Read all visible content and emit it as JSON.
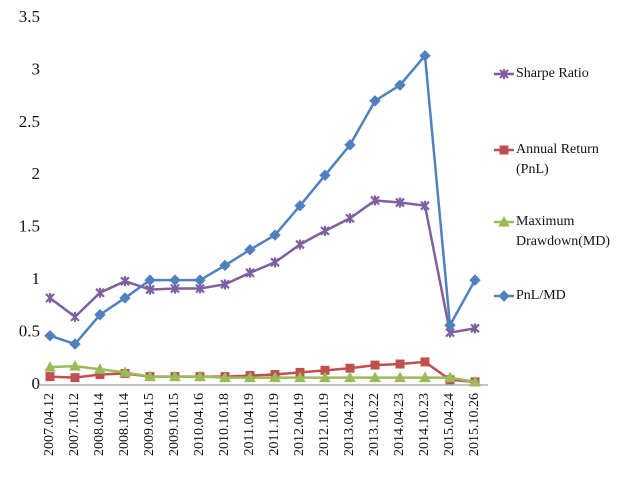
{
  "chart_data": {
    "type": "line",
    "categories": [
      "2007.04.12",
      "2007.10.12",
      "2008.04.14",
      "2008.10.14",
      "2009.04.15",
      "2009.10.15",
      "2010.04.16",
      "2010.10.18",
      "2011.04.19",
      "2011.10.19",
      "2012.04.19",
      "2012.10.19",
      "2013.04.22",
      "2013.10.22",
      "2014.04.23",
      "2014.10.23",
      "2015.04.24",
      "2015.10.26"
    ],
    "series": [
      {
        "name": "Sharpe Ratio",
        "color": "#7f5fa0",
        "marker": "star",
        "values": [
          0.83,
          0.65,
          0.88,
          0.99,
          0.91,
          0.92,
          0.92,
          0.96,
          1.07,
          1.17,
          1.34,
          1.47,
          1.59,
          1.76,
          1.74,
          1.71,
          0.5,
          0.54
        ]
      },
      {
        "name": "Annual Return (PnL)",
        "color": "#c0504d",
        "marker": "square",
        "values": [
          0.08,
          0.07,
          0.1,
          0.11,
          0.08,
          0.08,
          0.08,
          0.08,
          0.09,
          0.1,
          0.12,
          0.14,
          0.16,
          0.19,
          0.2,
          0.22,
          0.05,
          0.03
        ]
      },
      {
        "name": "Maximum Drawdown(MD)",
        "color": "#9bbb59",
        "marker": "triangle",
        "values": [
          0.17,
          0.18,
          0.15,
          0.12,
          0.08,
          0.08,
          0.08,
          0.07,
          0.07,
          0.07,
          0.07,
          0.07,
          0.07,
          0.07,
          0.07,
          0.07,
          0.07,
          0.03
        ]
      },
      {
        "name": "PnL/MD",
        "color": "#4f81bd",
        "marker": "diamond",
        "values": [
          0.47,
          0.39,
          0.67,
          0.83,
          1.0,
          1.0,
          1.0,
          1.14,
          1.29,
          1.43,
          1.71,
          2.0,
          2.29,
          2.71,
          2.86,
          3.14,
          0.57,
          1.0
        ]
      }
    ],
    "ylim": [
      0,
      3.5
    ],
    "yticks": [
      0,
      0.5,
      1,
      1.5,
      2,
      2.5,
      3,
      3.5
    ],
    "grid": false,
    "legend": "right"
  }
}
